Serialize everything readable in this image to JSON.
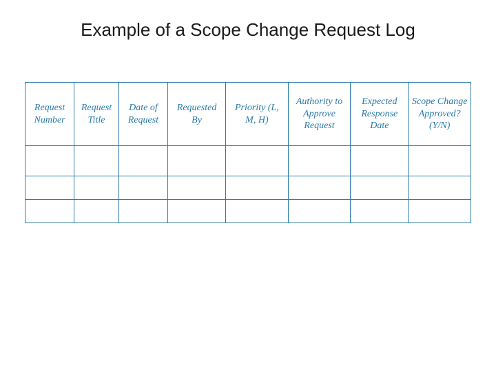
{
  "title": "Example of a Scope Change Request Log",
  "table": {
    "type": "table",
    "border_color": "#2a7ba8",
    "header_text_color": "#2a7ba8",
    "header_font_style": "italic",
    "header_font_family": "serif",
    "header_fontsize": 14,
    "background_color": "#ffffff",
    "columns": [
      {
        "label": "Request Number",
        "width_pct": 11
      },
      {
        "label": "Request Title",
        "width_pct": 10
      },
      {
        "label": "Date of Request",
        "width_pct": 11
      },
      {
        "label": "Requested By",
        "width_pct": 13
      },
      {
        "label": "Priority (L, M, H)",
        "width_pct": 14
      },
      {
        "label": "Authority to Approve Request",
        "width_pct": 14
      },
      {
        "label": "Expected Response Date",
        "width_pct": 13
      },
      {
        "label": "Scope Change Approved? (Y/N)",
        "width_pct": 14
      }
    ],
    "rows": [
      [
        "",
        "",
        "",
        "",
        "",
        "",
        "",
        ""
      ],
      [
        "",
        "",
        "",
        "",
        "",
        "",
        "",
        ""
      ],
      [
        "",
        "",
        "",
        "",
        "",
        "",
        "",
        ""
      ]
    ]
  }
}
